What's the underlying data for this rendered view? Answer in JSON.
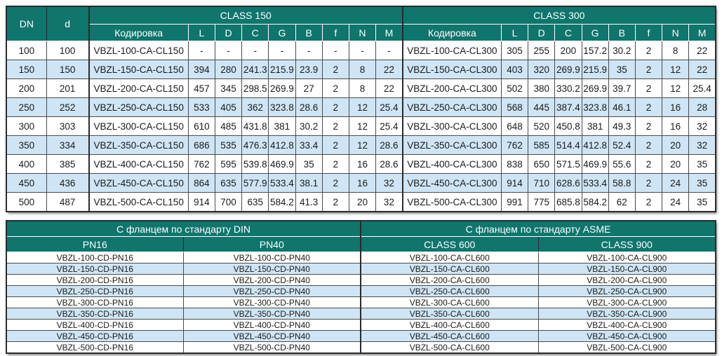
{
  "colors": {
    "header_bg": "#0f756d",
    "row_alt_bg": "#cfe5f6",
    "row_bg": "#ffffff",
    "border": "#4a4a4a",
    "header_text": "#ffffff",
    "text": "#1a1a1a"
  },
  "top_table": {
    "col_dn": "DN",
    "col_d": "d",
    "class150_label": "CLASS 150",
    "class300_label": "CLASS 300",
    "sub_headers": [
      "Кодировка",
      "L",
      "D",
      "C",
      "G",
      "B",
      "f",
      "N",
      "M"
    ],
    "rows": [
      {
        "dn": "100",
        "d": "100",
        "c150": [
          "VBZL-100-CA-CL150",
          "-",
          "-",
          "-",
          "-",
          "-",
          "-",
          "-",
          "-"
        ],
        "c300": [
          "VBZL-100-CA-CL300",
          "305",
          "255",
          "200",
          "157.2",
          "30.2",
          "2",
          "8",
          "22"
        ]
      },
      {
        "dn": "150",
        "d": "150",
        "c150": [
          "VBZL-150-CA-CL150",
          "394",
          "280",
          "241.3",
          "215.9",
          "23.9",
          "2",
          "8",
          "22"
        ],
        "c300": [
          "VBZL-150-CA-CL300",
          "403",
          "320",
          "269.9",
          "215.9",
          "35",
          "2",
          "12",
          "22"
        ]
      },
      {
        "dn": "200",
        "d": "201",
        "c150": [
          "VBZL-200-CA-CL150",
          "457",
          "345",
          "298.5",
          "269.9",
          "27",
          "2",
          "8",
          "22"
        ],
        "c300": [
          "VBZL-200-CA-CL300",
          "502",
          "380",
          "330.2",
          "269.9",
          "39.7",
          "2",
          "12",
          "25.4"
        ]
      },
      {
        "dn": "250",
        "d": "252",
        "c150": [
          "VBZL-250-CA-CL150",
          "533",
          "405",
          "362",
          "323.8",
          "28.6",
          "2",
          "12",
          "25.4"
        ],
        "c300": [
          "VBZL-250-CA-CL300",
          "568",
          "445",
          "387.4",
          "323.8",
          "46.1",
          "2",
          "16",
          "28"
        ]
      },
      {
        "dn": "300",
        "d": "303",
        "c150": [
          "VBZL-300-CA-CL150",
          "610",
          "485",
          "431.8",
          "381",
          "30.2",
          "2",
          "12",
          "25.4"
        ],
        "c300": [
          "VBZL-300-CA-CL300",
          "648",
          "520",
          "450.8",
          "381",
          "49.3",
          "2",
          "16",
          "32"
        ]
      },
      {
        "dn": "350",
        "d": "334",
        "c150": [
          "VBZL-350-CA-CL150",
          "686",
          "535",
          "476.3",
          "412.8",
          "33.4",
          "2",
          "12",
          "28.6"
        ],
        "c300": [
          "VBZL-350-CA-CL300",
          "762",
          "585",
          "514.4",
          "412.8",
          "52.4",
          "2",
          "20",
          "32"
        ]
      },
      {
        "dn": "400",
        "d": "385",
        "c150": [
          "VBZL-400-CA-CL150",
          "762",
          "595",
          "539.8",
          "469.9",
          "35",
          "2",
          "16",
          "28.6"
        ],
        "c300": [
          "VBZL-400-CA-CL300",
          "838",
          "650",
          "571.5",
          "469.9",
          "55.6",
          "2",
          "20",
          "35"
        ]
      },
      {
        "dn": "450",
        "d": "436",
        "c150": [
          "VBZL-450-CA-CL150",
          "864",
          "635",
          "577.9",
          "533.4",
          "38.1",
          "2",
          "16",
          "32"
        ],
        "c300": [
          "VBZL-450-CA-CL300",
          "914",
          "710",
          "628.6",
          "533.4",
          "58.8",
          "2",
          "24",
          "35"
        ]
      },
      {
        "dn": "500",
        "d": "487",
        "c150": [
          "VBZL-500-CA-CL150",
          "914",
          "700",
          "635",
          "584.2",
          "41.3",
          "2",
          "20",
          "32"
        ],
        "c300": [
          "VBZL-500-CA-CL300",
          "991",
          "775",
          "685.8",
          "584.2",
          "62",
          "2",
          "24",
          "35"
        ]
      }
    ]
  },
  "bottom_table": {
    "din_label": "С фланцем по стандарту DIN",
    "asme_label": "С фланцем по стандарту ASME",
    "sub_headers": [
      "PN16",
      "PN40",
      "CLASS 600",
      "CLASS 900"
    ],
    "rows": [
      [
        "VBZL-100-CD-PN16",
        "VBZL-100-CD-PN40",
        "VBZL-100-CA-CL600",
        "VBZL-100-CA-CL900"
      ],
      [
        "VBZL-150-CD-PN16",
        "VBZL-150-CD-PN40",
        "VBZL-150-CA-CL600",
        "VBZL-150-CA-CL900"
      ],
      [
        "VBZL-200-CD-PN16",
        "VBZL-200-CD-PN40",
        "VBZL-200-CA-CL600",
        "VBZL-200-CA-CL900"
      ],
      [
        "VBZL-250-CD-PN16",
        "VBZL-250-CD-PN40",
        "VBZL-250-CA-CL600",
        "VBZL-250-CA-CL900"
      ],
      [
        "VBZL-300-CD-PN16",
        "VBZL-300-CD-PN40",
        "VBZL-300-CA-CL600",
        "VBZL-300-CA-CL900"
      ],
      [
        "VBZL-350-CD-PN16",
        "VBZL-350-CD-PN40",
        "VBZL-350-CA-CL600",
        "VBZL-350-CA-CL900"
      ],
      [
        "VBZL-400-CD-PN16",
        "VBZL-400-CD-PN40",
        "VBZL-400-CA-CL600",
        "VBZL-400-CA-CL900"
      ],
      [
        "VBZL-450-CD-PN16",
        "VBZL-450-CD-PN40",
        "VBZL-450-CA-CL600",
        "VBZL-450-CA-CL900"
      ],
      [
        "VBZL-500-CD-PN16",
        "VBZL-500-CD-PN40",
        "VBZL-500-CA-CL600",
        "VBZL-500-CA-CL900"
      ]
    ]
  }
}
